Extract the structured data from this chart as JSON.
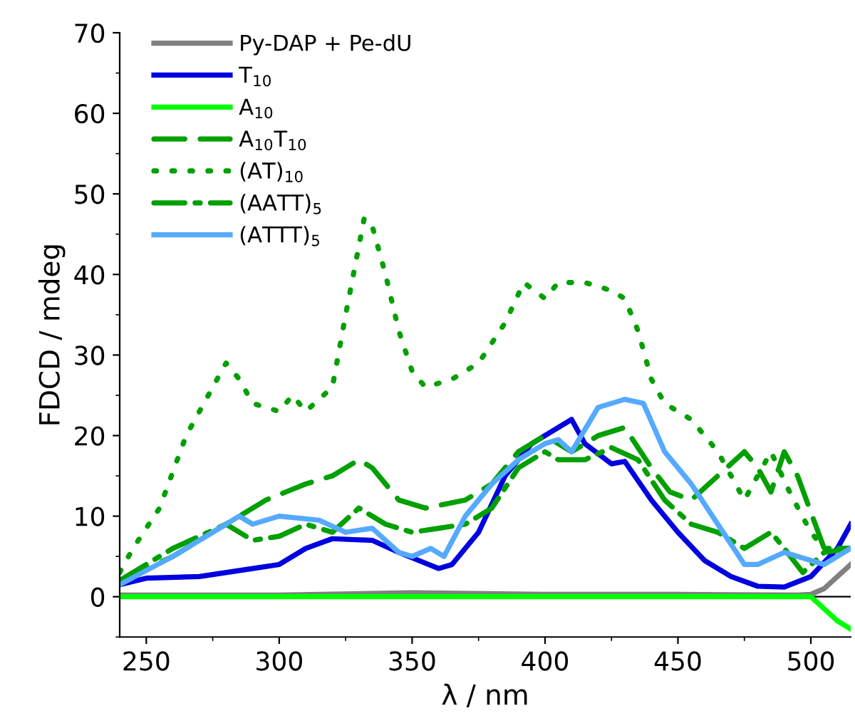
{
  "chart_data": {
    "type": "line",
    "xlabel": "λ / nm",
    "ylabel": "FDCD / mdeg",
    "xlim": [
      240,
      515
    ],
    "ylim": [
      -5,
      70
    ],
    "xticks": [
      250,
      300,
      350,
      400,
      450,
      500
    ],
    "yticks": [
      0,
      10,
      20,
      30,
      40,
      50,
      60,
      70
    ],
    "grid": false,
    "legend": "top left",
    "marker": "none",
    "ref_lines": [
      {
        "axis": "y",
        "value": 0,
        "color": "#000000"
      }
    ],
    "series": [
      {
        "name": "Py-DAP + Pe-dU",
        "color": "#808080",
        "line_style": "solid",
        "x": [
          240,
          300,
          350,
          400,
          450,
          495,
          500,
          505,
          510,
          515
        ],
        "values": [
          0.2,
          0.2,
          0.5,
          0.3,
          0.3,
          0.2,
          0.3,
          1,
          2.5,
          4
        ]
      },
      {
        "name": "T$_{10}$",
        "color": "#0000e0",
        "line_style": "solid",
        "x": [
          240,
          250,
          270,
          290,
          300,
          310,
          320,
          335,
          345,
          360,
          365,
          375,
          385,
          395,
          405,
          410,
          415,
          425,
          430,
          440,
          450,
          460,
          470,
          480,
          490,
          500,
          510,
          515
        ],
        "values": [
          1.5,
          2.3,
          2.5,
          3.5,
          4,
          6,
          7.2,
          7,
          5.5,
          3.5,
          4,
          8,
          15,
          19,
          21,
          22,
          19,
          16.5,
          16.8,
          12,
          8,
          4.5,
          2.5,
          1.3,
          1.2,
          2.5,
          6,
          9
        ]
      },
      {
        "name": "A$_{10}$",
        "color": "#00ff00",
        "line_style": "solid",
        "x": [
          240,
          300,
          350,
          400,
          450,
          500,
          505,
          510,
          515
        ],
        "values": [
          0,
          0,
          0,
          0,
          0,
          0,
          -1.5,
          -3,
          -4
        ]
      },
      {
        "name": "A$_{10}$T$_{10}$",
        "color": "#00a000",
        "line_style": "dashed",
        "x": [
          240,
          260,
          280,
          295,
          310,
          320,
          330,
          335,
          345,
          355,
          370,
          380,
          390,
          400,
          405,
          410,
          420,
          430,
          440,
          447,
          455,
          465,
          475,
          480,
          485,
          490,
          495,
          505,
          515
        ],
        "values": [
          2,
          5,
          9,
          12,
          14,
          15,
          17,
          16,
          12,
          11,
          12,
          14,
          18,
          20,
          19,
          18,
          20,
          21,
          16,
          13,
          12,
          15,
          18,
          16,
          13,
          18,
          15,
          6,
          6
        ]
      },
      {
        "name": "(AT)$_{10}$",
        "color": "#00a000",
        "line_style": "dotted",
        "x": [
          240,
          245,
          255,
          265,
          280,
          285,
          290,
          300,
          305,
          310,
          320,
          325,
          332,
          335,
          340,
          345,
          350,
          355,
          365,
          375,
          385,
          392,
          400,
          405,
          415,
          425,
          430,
          435,
          440,
          445,
          455,
          465,
          475,
          485,
          492,
          500,
          505,
          515
        ],
        "values": [
          3,
          6,
          11,
          20,
          29,
          27,
          24,
          23,
          25,
          23,
          26,
          35,
          47,
          46,
          40,
          33,
          28,
          26,
          27,
          29,
          34,
          39,
          37,
          39,
          39,
          38,
          37,
          33,
          27,
          24,
          22,
          18,
          12,
          18,
          13,
          8,
          6,
          6
        ]
      },
      {
        "name": "(AATT)$_{5}$",
        "color": "#00a000",
        "line_style": "dashdot",
        "x": [
          240,
          260,
          280,
          290,
          300,
          310,
          320,
          330,
          340,
          350,
          360,
          370,
          380,
          390,
          400,
          405,
          415,
          425,
          435,
          445,
          455,
          465,
          475,
          485,
          490,
          497,
          505,
          515
        ],
        "values": [
          2,
          6,
          9,
          7,
          7.5,
          9,
          8,
          11,
          9,
          8,
          8.5,
          9,
          11,
          16,
          18,
          17,
          17,
          18.5,
          17,
          12,
          9,
          8,
          6,
          8,
          6,
          3,
          5.5,
          6
        ]
      },
      {
        "name": "(ATTT)$_{5}$",
        "color": "#55aaff",
        "line_style": "solid",
        "x": [
          240,
          260,
          280,
          285,
          290,
          300,
          315,
          325,
          335,
          345,
          350,
          357,
          362,
          370,
          380,
          390,
          400,
          405,
          410,
          420,
          430,
          437,
          445,
          455,
          465,
          475,
          480,
          490,
          500,
          505,
          515
        ],
        "values": [
          1.5,
          5,
          9,
          10,
          9,
          10,
          9.5,
          8,
          8.5,
          5.5,
          5,
          6,
          5,
          10,
          14,
          17,
          19,
          19.5,
          18,
          23.5,
          24.5,
          24,
          18,
          14,
          9,
          4,
          4,
          5.5,
          4.5,
          4,
          6
        ]
      }
    ]
  }
}
